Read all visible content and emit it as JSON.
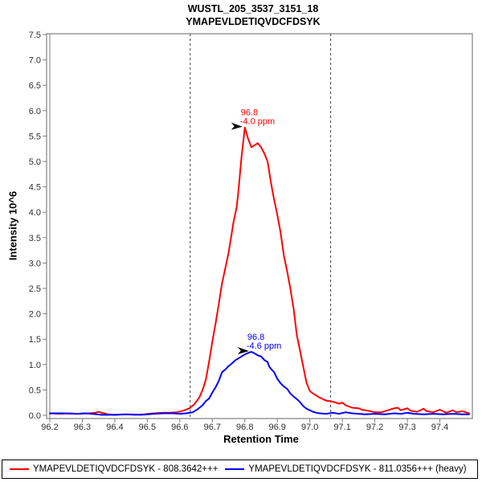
{
  "chart_data": {
    "type": "line",
    "title_lines": [
      "WUSTL_205_3537_3151_18",
      "YMAPEVLDETIQVDCFDSYK"
    ],
    "xlabel": "Retention Time",
    "ylabel": "Intensity 10^6",
    "xlim": [
      96.2,
      97.5
    ],
    "ylim": [
      0,
      7.5
    ],
    "x_ticks": [
      "96.2",
      "96.3",
      "96.4",
      "96.5",
      "96.6",
      "96.7",
      "96.8",
      "96.9",
      "97.0",
      "97.1",
      "97.2",
      "97.3",
      "97.4"
    ],
    "y_ticks": [
      "0.0",
      "0.5",
      "1.0",
      "1.5",
      "2.0",
      "2.5",
      "3.0",
      "3.5",
      "4.0",
      "4.5",
      "5.0",
      "5.5",
      "6.0",
      "6.5",
      "7.0",
      "7.5"
    ],
    "grid": false,
    "legend_position": "bottom",
    "integration_boundaries": [
      96.632,
      97.064
    ],
    "series": [
      {
        "name": "YMAPEVLDETIQVDCFDSYK - 808.3642+++",
        "color": "#ff0000",
        "peak_annotation": {
          "rt_label": "96.8",
          "ppm_label": "-4.0 ppm",
          "anchor": [
            96.8,
            5.67
          ]
        },
        "points": [
          [
            96.2,
            0.04
          ],
          [
            96.23,
            0.03
          ],
          [
            96.26,
            0.04
          ],
          [
            96.29,
            0.03
          ],
          [
            96.32,
            0.04
          ],
          [
            96.34,
            0.05
          ],
          [
            96.35,
            0.07
          ],
          [
            96.36,
            0.05
          ],
          [
            96.38,
            0.02
          ],
          [
            96.4,
            0.01
          ],
          [
            96.43,
            0.02
          ],
          [
            96.46,
            0.01
          ],
          [
            96.49,
            0.02
          ],
          [
            96.52,
            0.04
          ],
          [
            96.55,
            0.05
          ],
          [
            96.57,
            0.05
          ],
          [
            96.59,
            0.06
          ],
          [
            96.61,
            0.09
          ],
          [
            96.63,
            0.14
          ],
          [
            96.645,
            0.22
          ],
          [
            96.66,
            0.35
          ],
          [
            96.67,
            0.5
          ],
          [
            96.68,
            0.7
          ],
          [
            96.69,
            1.06
          ],
          [
            96.7,
            1.45
          ],
          [
            96.71,
            1.8
          ],
          [
            96.72,
            2.2
          ],
          [
            96.73,
            2.6
          ],
          [
            96.74,
            2.9
          ],
          [
            96.75,
            3.2
          ],
          [
            96.76,
            3.6
          ],
          [
            96.765,
            3.8
          ],
          [
            96.775,
            4.1
          ],
          [
            96.78,
            4.4
          ],
          [
            96.79,
            5.1
          ],
          [
            96.8,
            5.67
          ],
          [
            96.81,
            5.45
          ],
          [
            96.82,
            5.28
          ],
          [
            96.83,
            5.32
          ],
          [
            96.84,
            5.36
          ],
          [
            96.85,
            5.28
          ],
          [
            96.86,
            5.16
          ],
          [
            96.87,
            5.0
          ],
          [
            96.88,
            4.6
          ],
          [
            96.89,
            4.25
          ],
          [
            96.9,
            3.95
          ],
          [
            96.91,
            3.6
          ],
          [
            96.92,
            3.15
          ],
          [
            96.93,
            2.84
          ],
          [
            96.94,
            2.5
          ],
          [
            96.95,
            2.1
          ],
          [
            96.96,
            1.58
          ],
          [
            96.97,
            1.27
          ],
          [
            96.98,
            0.95
          ],
          [
            96.99,
            0.64
          ],
          [
            97.0,
            0.48
          ],
          [
            97.01,
            0.43
          ],
          [
            97.02,
            0.39
          ],
          [
            97.03,
            0.35
          ],
          [
            97.05,
            0.29
          ],
          [
            97.07,
            0.27
          ],
          [
            97.09,
            0.23
          ],
          [
            97.1,
            0.25
          ],
          [
            97.11,
            0.2
          ],
          [
            97.13,
            0.15
          ],
          [
            97.15,
            0.14
          ],
          [
            97.16,
            0.11
          ],
          [
            97.18,
            0.09
          ],
          [
            97.2,
            0.06
          ],
          [
            97.22,
            0.06
          ],
          [
            97.24,
            0.1
          ],
          [
            97.26,
            0.14
          ],
          [
            97.27,
            0.15
          ],
          [
            97.28,
            0.1
          ],
          [
            97.3,
            0.14
          ],
          [
            97.31,
            0.09
          ],
          [
            97.33,
            0.07
          ],
          [
            97.35,
            0.13
          ],
          [
            97.36,
            0.08
          ],
          [
            97.38,
            0.06
          ],
          [
            97.4,
            0.11
          ],
          [
            97.42,
            0.05
          ],
          [
            97.44,
            0.1
          ],
          [
            97.45,
            0.06
          ],
          [
            97.47,
            0.08
          ],
          [
            97.49,
            0.04
          ]
        ]
      },
      {
        "name": "YMAPEVLDETIQVDCFDSYK - 811.0356+++ (heavy)",
        "color": "#0000ff",
        "peak_annotation": {
          "rt_label": "96.8",
          "ppm_label": "-4.6 ppm",
          "anchor": [
            96.82,
            1.25
          ]
        },
        "points": [
          [
            96.2,
            0.04
          ],
          [
            96.24,
            0.04
          ],
          [
            96.28,
            0.03
          ],
          [
            96.31,
            0.04
          ],
          [
            96.33,
            0.03
          ],
          [
            96.36,
            0.01
          ],
          [
            96.4,
            0.01
          ],
          [
            96.44,
            0.02
          ],
          [
            96.48,
            0.01
          ],
          [
            96.52,
            0.03
          ],
          [
            96.55,
            0.04
          ],
          [
            96.58,
            0.04
          ],
          [
            96.6,
            0.03
          ],
          [
            96.62,
            0.04
          ],
          [
            96.64,
            0.06
          ],
          [
            96.655,
            0.12
          ],
          [
            96.67,
            0.2
          ],
          [
            96.68,
            0.28
          ],
          [
            96.69,
            0.33
          ],
          [
            96.7,
            0.45
          ],
          [
            96.71,
            0.55
          ],
          [
            96.72,
            0.68
          ],
          [
            96.73,
            0.85
          ],
          [
            96.74,
            0.9
          ],
          [
            96.75,
            0.97
          ],
          [
            96.76,
            1.02
          ],
          [
            96.77,
            1.08
          ],
          [
            96.78,
            1.12
          ],
          [
            96.79,
            1.16
          ],
          [
            96.8,
            1.2
          ],
          [
            96.81,
            1.23
          ],
          [
            96.82,
            1.25
          ],
          [
            96.83,
            1.22
          ],
          [
            96.84,
            1.18
          ],
          [
            96.85,
            1.16
          ],
          [
            96.86,
            1.09
          ],
          [
            96.87,
            1.05
          ],
          [
            96.875,
            0.96
          ],
          [
            96.88,
            0.92
          ],
          [
            96.89,
            0.85
          ],
          [
            96.9,
            0.72
          ],
          [
            96.91,
            0.63
          ],
          [
            96.92,
            0.57
          ],
          [
            96.93,
            0.52
          ],
          [
            96.94,
            0.43
          ],
          [
            96.95,
            0.37
          ],
          [
            96.96,
            0.32
          ],
          [
            96.97,
            0.26
          ],
          [
            96.98,
            0.18
          ],
          [
            96.99,
            0.13
          ],
          [
            97.0,
            0.1
          ],
          [
            97.01,
            0.07
          ],
          [
            97.02,
            0.05
          ],
          [
            97.03,
            0.04
          ],
          [
            97.05,
            0.03
          ],
          [
            97.07,
            0.05
          ],
          [
            97.09,
            0.03
          ],
          [
            97.11,
            0.06
          ],
          [
            97.13,
            0.04
          ],
          [
            97.15,
            0.03
          ],
          [
            97.17,
            0.02
          ],
          [
            97.2,
            0.03
          ],
          [
            97.23,
            0.02
          ],
          [
            97.26,
            0.04
          ],
          [
            97.28,
            0.03
          ],
          [
            97.3,
            0.05
          ],
          [
            97.32,
            0.03
          ],
          [
            97.35,
            0.02
          ],
          [
            97.38,
            0.03
          ],
          [
            97.41,
            0.02
          ],
          [
            97.44,
            0.03
          ],
          [
            97.47,
            0.02
          ],
          [
            97.49,
            0.02
          ]
        ]
      }
    ]
  },
  "colors": {
    "axis": "#808080",
    "tick_text": "#303030",
    "boundary": "#404040",
    "annotation_arrow": "#000000",
    "legend_border": "#000000"
  }
}
